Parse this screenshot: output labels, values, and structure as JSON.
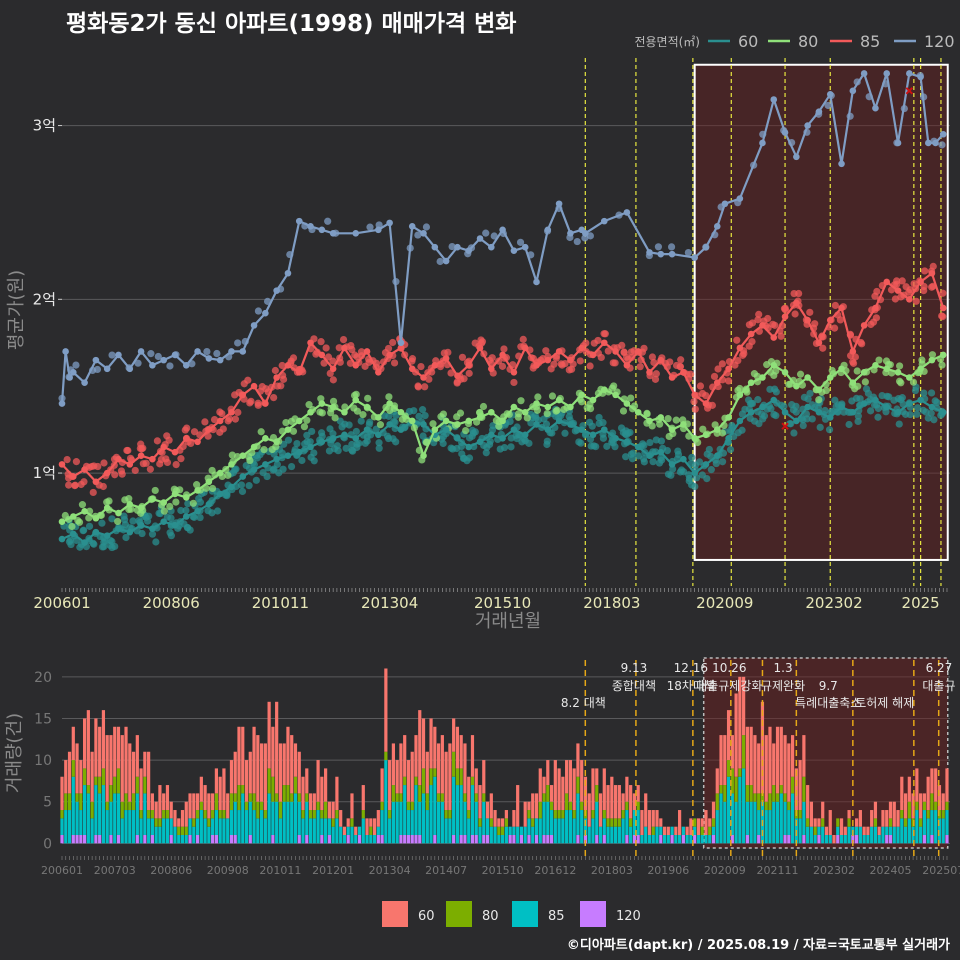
{
  "title": "평화동2가 동신 아파트(1998) 매매가격 변화",
  "credit": "©디아파트(dapt.kr) / 2025.08.19 / 자료=국토교통부 실거래가",
  "colors": {
    "background": "#2b2b2d",
    "grid": "#5a5a5c",
    "price_60": "#2a8f8f",
    "price_80": "#8fe07a",
    "price_85": "#f25a5a",
    "price_120": "#7f9dc4",
    "vol_60": "#f8766d",
    "vol_80": "#7cae00",
    "vol_85": "#00bfc4",
    "vol_120": "#c77cff",
    "policy_line": "#e8e840",
    "policy_line_vol": "#e6a817",
    "highlight_fill": "#6b2020",
    "marker": "#cc1111"
  },
  "chart_data": [
    {
      "type": "line",
      "name": "price",
      "title": "평화동2가 동신 아파트(1998) 매매가격 변화",
      "xlabel": "거래년월",
      "ylabel": "평균가(원)",
      "legend_title": "전용면적(㎡)",
      "legend_position": "top-right",
      "x_range": [
        2006.0,
        2025.65
      ],
      "y_range": [
        0.35,
        3.55
      ],
      "x_ticks": [
        {
          "t": 2006.0,
          "label": "200601"
        },
        {
          "t": 2008.417,
          "label": "200806"
        },
        {
          "t": 2010.833,
          "label": "201011"
        },
        {
          "t": 2013.25,
          "label": "201304"
        },
        {
          "t": 2015.75,
          "label": "201510"
        },
        {
          "t": 2018.167,
          "label": "201803"
        },
        {
          "t": 2020.667,
          "label": "202009"
        },
        {
          "t": 2023.083,
          "label": "202302"
        },
        {
          "t": 2025.0,
          "label": "2025"
        }
      ],
      "y_ticks": [
        {
          "v": 1,
          "label": "1억"
        },
        {
          "v": 2,
          "label": "2억"
        },
        {
          "v": 3,
          "label": "3억"
        }
      ],
      "grid": true,
      "policy_lines": [
        2017.58,
        2018.7,
        2019.96,
        2020.81,
        2022.0,
        2023.0,
        2024.85,
        2025.0,
        2025.45
      ],
      "highlight_range": [
        2020.0,
        2025.6
      ],
      "highlight_y": [
        0.5,
        3.35
      ],
      "series": [
        {
          "name": "120",
          "color_key": "price_120",
          "x": [
            2006.0,
            2006.08,
            2006.17,
            2006.25,
            2006.5,
            2006.75,
            2007.0,
            2007.25,
            2007.5,
            2007.75,
            2008.0,
            2008.25,
            2008.5,
            2008.75,
            2009.0,
            2009.25,
            2009.5,
            2009.75,
            2010.0,
            2010.25,
            2010.5,
            2010.75,
            2011.0,
            2011.25,
            2011.5,
            2011.75,
            2012.0,
            2012.5,
            2013.0,
            2013.25,
            2013.5,
            2013.75,
            2014.0,
            2014.25,
            2014.5,
            2014.75,
            2015.0,
            2015.25,
            2015.5,
            2015.75,
            2016.0,
            2016.25,
            2016.5,
            2016.75,
            2017.0,
            2017.25,
            2017.5,
            2017.58,
            2018.0,
            2018.5,
            2019.0,
            2019.25,
            2019.5,
            2020.0,
            2020.25,
            2020.5,
            2020.67,
            2021.0,
            2021.5,
            2021.75,
            2022.0,
            2022.25,
            2022.5,
            2022.75,
            2023.0,
            2023.25,
            2023.5,
            2023.75,
            2024.0,
            2024.25,
            2024.5,
            2024.75,
            2025.0,
            2025.17,
            2025.33,
            2025.5
          ],
          "y": [
            1.4,
            1.7,
            1.55,
            1.58,
            1.52,
            1.65,
            1.6,
            1.68,
            1.6,
            1.7,
            1.62,
            1.65,
            1.68,
            1.62,
            1.7,
            1.66,
            1.65,
            1.7,
            1.7,
            1.85,
            1.92,
            2.05,
            2.15,
            2.45,
            2.42,
            2.4,
            2.38,
            2.38,
            2.4,
            2.44,
            1.75,
            2.42,
            2.38,
            2.3,
            2.22,
            2.3,
            2.28,
            2.35,
            2.3,
            2.4,
            2.28,
            2.3,
            2.1,
            2.4,
            2.55,
            2.38,
            2.4,
            2.38,
            2.45,
            2.5,
            2.27,
            2.26,
            2.26,
            2.24,
            2.3,
            2.42,
            2.55,
            2.58,
            2.9,
            3.15,
            2.96,
            2.82,
            3.0,
            3.08,
            3.18,
            2.78,
            3.2,
            3.3,
            3.1,
            3.3,
            2.9,
            3.3,
            3.28,
            2.9,
            2.9,
            2.95
          ]
        },
        {
          "name": "85",
          "color_key": "price_85",
          "x": [
            2006.0,
            2006.25,
            2006.5,
            2006.75,
            2007.0,
            2007.25,
            2007.5,
            2007.75,
            2008.0,
            2008.25,
            2008.5,
            2008.75,
            2009.0,
            2009.25,
            2009.5,
            2009.75,
            2010.0,
            2010.25,
            2010.5,
            2010.75,
            2011.0,
            2011.25,
            2011.5,
            2011.75,
            2012.0,
            2012.25,
            2012.5,
            2012.75,
            2013.0,
            2013.25,
            2013.5,
            2013.75,
            2014.0,
            2014.25,
            2014.5,
            2014.75,
            2015.0,
            2015.25,
            2015.5,
            2015.75,
            2016.0,
            2016.25,
            2016.5,
            2016.75,
            2017.0,
            2017.25,
            2017.5,
            2017.75,
            2018.0,
            2018.25,
            2018.5,
            2018.75,
            2019.0,
            2019.25,
            2019.5,
            2019.75,
            2020.0,
            2020.25,
            2020.5,
            2020.75,
            2021.0,
            2021.25,
            2021.5,
            2021.75,
            2022.0,
            2022.25,
            2022.5,
            2022.75,
            2023.0,
            2023.25,
            2023.5,
            2023.75,
            2024.0,
            2024.25,
            2024.5,
            2024.75,
            2025.0,
            2025.25,
            2025.5
          ],
          "y": [
            1.05,
            0.98,
            1.02,
            0.95,
            1.0,
            1.08,
            1.05,
            1.1,
            1.08,
            1.15,
            1.12,
            1.2,
            1.18,
            1.25,
            1.3,
            1.35,
            1.45,
            1.5,
            1.4,
            1.55,
            1.62,
            1.58,
            1.75,
            1.68,
            1.6,
            1.72,
            1.62,
            1.7,
            1.58,
            1.68,
            1.72,
            1.6,
            1.55,
            1.62,
            1.66,
            1.56,
            1.62,
            1.72,
            1.6,
            1.68,
            1.58,
            1.72,
            1.62,
            1.65,
            1.7,
            1.65,
            1.72,
            1.68,
            1.75,
            1.7,
            1.62,
            1.7,
            1.58,
            1.65,
            1.55,
            1.58,
            1.45,
            1.4,
            1.52,
            1.6,
            1.72,
            1.8,
            1.85,
            1.78,
            1.9,
            1.98,
            1.88,
            1.75,
            1.88,
            1.95,
            1.7,
            1.85,
            1.95,
            2.1,
            2.05,
            2.0,
            2.1,
            2.15,
            1.95
          ]
        },
        {
          "name": "80",
          "color_key": "price_80",
          "x": [
            2006.0,
            2006.25,
            2006.5,
            2006.75,
            2007.0,
            2007.25,
            2007.5,
            2007.75,
            2008.0,
            2008.25,
            2008.5,
            2008.75,
            2009.0,
            2009.25,
            2009.5,
            2009.75,
            2010.0,
            2010.25,
            2010.5,
            2010.75,
            2011.0,
            2011.25,
            2011.5,
            2011.75,
            2012.0,
            2012.25,
            2012.5,
            2012.75,
            2013.0,
            2013.25,
            2013.5,
            2013.75,
            2014.0,
            2014.25,
            2014.5,
            2014.75,
            2015.0,
            2015.25,
            2015.5,
            2015.75,
            2016.0,
            2016.25,
            2016.5,
            2016.75,
            2017.0,
            2017.25,
            2017.5,
            2017.75,
            2018.0,
            2018.25,
            2018.5,
            2018.75,
            2019.0,
            2019.25,
            2019.5,
            2019.75,
            2020.0,
            2020.25,
            2020.5,
            2020.75,
            2021.0,
            2021.25,
            2021.5,
            2021.75,
            2022.0,
            2022.25,
            2022.5,
            2022.75,
            2023.0,
            2023.25,
            2023.5,
            2023.75,
            2024.0,
            2024.25,
            2024.5,
            2024.75,
            2025.0,
            2025.25,
            2025.5
          ],
          "y": [
            0.72,
            0.75,
            0.78,
            0.74,
            0.8,
            0.77,
            0.82,
            0.8,
            0.85,
            0.83,
            0.88,
            0.86,
            0.9,
            0.95,
            1.0,
            1.05,
            1.1,
            1.15,
            1.2,
            1.18,
            1.25,
            1.3,
            1.35,
            1.4,
            1.38,
            1.35,
            1.42,
            1.38,
            1.32,
            1.4,
            1.35,
            1.3,
            1.1,
            1.25,
            1.3,
            1.28,
            1.3,
            1.32,
            1.35,
            1.3,
            1.38,
            1.35,
            1.4,
            1.38,
            1.42,
            1.38,
            1.45,
            1.42,
            1.48,
            1.45,
            1.4,
            1.35,
            1.3,
            1.32,
            1.25,
            1.28,
            1.2,
            1.22,
            1.25,
            1.32,
            1.45,
            1.52,
            1.55,
            1.62,
            1.58,
            1.5,
            1.55,
            1.48,
            1.55,
            1.6,
            1.52,
            1.58,
            1.62,
            1.6,
            1.58,
            1.55,
            1.6,
            1.65,
            1.68
          ]
        },
        {
          "name": "60",
          "color_key": "price_60",
          "x": [
            2006.0,
            2006.25,
            2006.5,
            2006.75,
            2007.0,
            2007.25,
            2007.5,
            2007.75,
            2008.0,
            2008.25,
            2008.5,
            2008.75,
            2009.0,
            2009.25,
            2009.5,
            2009.75,
            2010.0,
            2010.25,
            2010.5,
            2010.75,
            2011.0,
            2011.25,
            2011.5,
            2011.75,
            2012.0,
            2012.25,
            2012.5,
            2012.75,
            2013.0,
            2013.25,
            2013.5,
            2013.75,
            2014.0,
            2014.25,
            2014.5,
            2014.75,
            2015.0,
            2015.25,
            2015.5,
            2015.75,
            2016.0,
            2016.25,
            2016.5,
            2016.75,
            2017.0,
            2017.25,
            2017.5,
            2017.75,
            2018.0,
            2018.25,
            2018.5,
            2018.75,
            2019.0,
            2019.25,
            2019.5,
            2019.75,
            2020.0,
            2020.25,
            2020.5,
            2020.75,
            2021.0,
            2021.25,
            2021.5,
            2021.75,
            2022.0,
            2022.25,
            2022.5,
            2022.75,
            2023.0,
            2023.25,
            2023.5,
            2023.75,
            2024.0,
            2024.25,
            2024.5,
            2024.75,
            2025.0,
            2025.25,
            2025.5
          ],
          "y": [
            0.62,
            0.65,
            0.6,
            0.66,
            0.64,
            0.68,
            0.66,
            0.7,
            0.68,
            0.72,
            0.7,
            0.75,
            0.78,
            0.82,
            0.88,
            0.92,
            0.98,
            1.02,
            1.05,
            1.08,
            1.1,
            1.12,
            1.15,
            1.18,
            1.2,
            1.22,
            1.2,
            1.25,
            1.22,
            1.28,
            1.25,
            1.3,
            1.28,
            1.22,
            1.25,
            1.2,
            1.15,
            1.18,
            1.22,
            1.2,
            1.25,
            1.22,
            1.28,
            1.25,
            1.3,
            1.28,
            1.25,
            1.22,
            1.25,
            1.2,
            1.18,
            1.15,
            1.1,
            1.12,
            1.05,
            1.08,
            1.0,
            1.05,
            1.1,
            1.2,
            1.3,
            1.35,
            1.38,
            1.42,
            1.35,
            1.3,
            1.38,
            1.35,
            1.32,
            1.38,
            1.35,
            1.4,
            1.42,
            1.38,
            1.35,
            1.4,
            1.42,
            1.38,
            1.35
          ]
        }
      ],
      "markers": [
        {
          "x": 2022.0,
          "y": 1.27
        },
        {
          "x": 2024.75,
          "y": 3.2
        }
      ]
    },
    {
      "type": "bar",
      "name": "volume",
      "xlabel": "",
      "ylabel": "거래량(건)",
      "x_range": [
        2006.0,
        2025.65
      ],
      "y_range": [
        -0.8,
        22.5
      ],
      "y_ticks": [
        0,
        5,
        10,
        15,
        20
      ],
      "x_ticks": [
        {
          "t": 2006.0,
          "label": "200601"
        },
        {
          "t": 2007.167,
          "label": "200703"
        },
        {
          "t": 2008.417,
          "label": "200806"
        },
        {
          "t": 2009.667,
          "label": "200908"
        },
        {
          "t": 2010.833,
          "label": "201011"
        },
        {
          "t": 2012.0,
          "label": "201201"
        },
        {
          "t": 2013.25,
          "label": "201304"
        },
        {
          "t": 2014.5,
          "label": "201407"
        },
        {
          "t": 2015.75,
          "label": "201510"
        },
        {
          "t": 2016.917,
          "label": "201612"
        },
        {
          "t": 2018.167,
          "label": "201803"
        },
        {
          "t": 2019.417,
          "label": "201906"
        },
        {
          "t": 2020.667,
          "label": "202009"
        },
        {
          "t": 2021.833,
          "label": "202111"
        },
        {
          "t": 2023.083,
          "label": "202302"
        },
        {
          "t": 2024.333,
          "label": "202405"
        },
        {
          "t": 2025.5,
          "label": "202507"
        }
      ],
      "legend_position": "bottom",
      "highlight_range": [
        2020.2,
        2025.6
      ],
      "policy_lines": [
        2017.58,
        2018.7,
        2019.96,
        2020.8,
        2021.5,
        2022.25,
        2023.5,
        2024.85,
        2025.4
      ],
      "annotations": [
        {
          "t": 2017.58,
          "text": "8.2 대책",
          "row": 2
        },
        {
          "t": 2018.7,
          "text": "9.13",
          "row": 0
        },
        {
          "t": 2018.7,
          "text": "종합대책",
          "row": 1
        },
        {
          "t": 2019.96,
          "text": "12.16",
          "row": 0
        },
        {
          "t": 2019.96,
          "text": "18차대책",
          "row": 1
        },
        {
          "t": 2020.81,
          "text": "10.26",
          "row": 0
        },
        {
          "t": 2020.81,
          "text": "대출규제강화",
          "row": 1
        },
        {
          "t": 2022.0,
          "text": "1.3",
          "row": 0
        },
        {
          "t": 2022.0,
          "text": "규제완화",
          "row": 1
        },
        {
          "t": 2023.0,
          "text": "9.7",
          "row": 1
        },
        {
          "t": 2023.0,
          "text": "특례대출축소",
          "row": 2
        },
        {
          "t": 2024.25,
          "text": "토허제 해제",
          "row": 2
        },
        {
          "t": 2025.45,
          "text": "6.27",
          "row": 0
        },
        {
          "t": 2025.45,
          "text": "대출규",
          "row": 1
        }
      ],
      "series_names": [
        "60",
        "80",
        "85",
        "120"
      ],
      "monthly": []
    }
  ],
  "legend": [
    {
      "label": "60",
      "color_key": "vol_60"
    },
    {
      "label": "80",
      "color_key": "vol_80"
    },
    {
      "label": "85",
      "color_key": "vol_85"
    },
    {
      "label": "120",
      "color_key": "vol_120"
    }
  ]
}
